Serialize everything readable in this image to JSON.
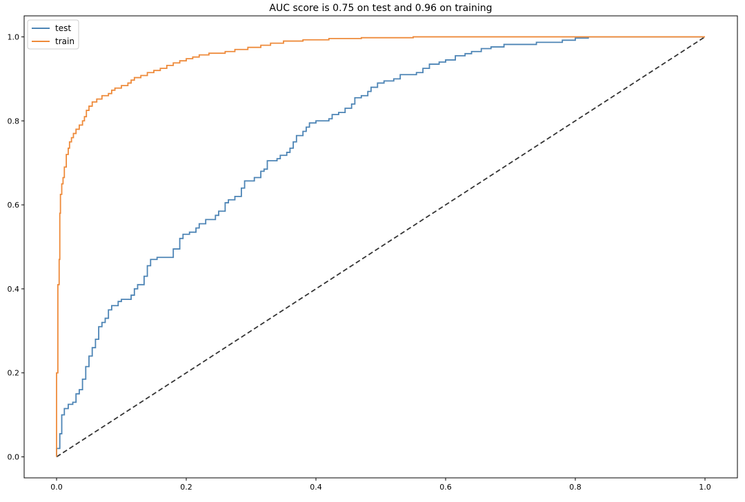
{
  "chart_data": {
    "type": "line",
    "title": "AUC score is 0.75 on test and 0.96 on training",
    "xlabel": "",
    "ylabel": "",
    "xlim": [
      -0.05,
      1.05
    ],
    "ylim": [
      -0.05,
      1.05
    ],
    "x_ticks": [
      0.0,
      0.2,
      0.4,
      0.6,
      0.8,
      1.0
    ],
    "x_tick_labels": [
      "0.0",
      "0.2",
      "0.4",
      "0.6",
      "0.8",
      "1.0"
    ],
    "y_ticks": [
      0.0,
      0.2,
      0.4,
      0.6,
      0.8,
      1.0
    ],
    "y_tick_labels": [
      "0.0",
      "0.2",
      "0.4",
      "0.6",
      "0.8",
      "1.0"
    ],
    "grid": false,
    "legend_position": "top-left",
    "series": [
      {
        "name": "test",
        "color": "#4c84b5",
        "style": "step",
        "points": [
          [
            0.0,
            0.0
          ],
          [
            0.0,
            0.02
          ],
          [
            0.005,
            0.02
          ],
          [
            0.005,
            0.055
          ],
          [
            0.008,
            0.055
          ],
          [
            0.008,
            0.1
          ],
          [
            0.012,
            0.1
          ],
          [
            0.012,
            0.115
          ],
          [
            0.018,
            0.115
          ],
          [
            0.018,
            0.125
          ],
          [
            0.025,
            0.125
          ],
          [
            0.025,
            0.13
          ],
          [
            0.03,
            0.13
          ],
          [
            0.03,
            0.15
          ],
          [
            0.035,
            0.15
          ],
          [
            0.035,
            0.16
          ],
          [
            0.04,
            0.16
          ],
          [
            0.04,
            0.185
          ],
          [
            0.045,
            0.185
          ],
          [
            0.045,
            0.215
          ],
          [
            0.05,
            0.215
          ],
          [
            0.05,
            0.24
          ],
          [
            0.055,
            0.24
          ],
          [
            0.055,
            0.26
          ],
          [
            0.06,
            0.26
          ],
          [
            0.06,
            0.28
          ],
          [
            0.065,
            0.28
          ],
          [
            0.065,
            0.31
          ],
          [
            0.07,
            0.31
          ],
          [
            0.07,
            0.32
          ],
          [
            0.075,
            0.32
          ],
          [
            0.075,
            0.33
          ],
          [
            0.08,
            0.33
          ],
          [
            0.08,
            0.35
          ],
          [
            0.085,
            0.35
          ],
          [
            0.085,
            0.36
          ],
          [
            0.095,
            0.36
          ],
          [
            0.095,
            0.37
          ],
          [
            0.1,
            0.37
          ],
          [
            0.1,
            0.375
          ],
          [
            0.115,
            0.375
          ],
          [
            0.115,
            0.385
          ],
          [
            0.12,
            0.385
          ],
          [
            0.12,
            0.4
          ],
          [
            0.125,
            0.4
          ],
          [
            0.125,
            0.41
          ],
          [
            0.135,
            0.41
          ],
          [
            0.135,
            0.43
          ],
          [
            0.14,
            0.43
          ],
          [
            0.14,
            0.455
          ],
          [
            0.145,
            0.455
          ],
          [
            0.145,
            0.47
          ],
          [
            0.155,
            0.47
          ],
          [
            0.155,
            0.475
          ],
          [
            0.18,
            0.475
          ],
          [
            0.18,
            0.495
          ],
          [
            0.19,
            0.495
          ],
          [
            0.19,
            0.52
          ],
          [
            0.195,
            0.52
          ],
          [
            0.195,
            0.53
          ],
          [
            0.205,
            0.53
          ],
          [
            0.205,
            0.535
          ],
          [
            0.215,
            0.535
          ],
          [
            0.215,
            0.545
          ],
          [
            0.22,
            0.545
          ],
          [
            0.22,
            0.555
          ],
          [
            0.23,
            0.555
          ],
          [
            0.23,
            0.565
          ],
          [
            0.245,
            0.565
          ],
          [
            0.245,
            0.575
          ],
          [
            0.25,
            0.575
          ],
          [
            0.25,
            0.585
          ],
          [
            0.26,
            0.585
          ],
          [
            0.26,
            0.605
          ],
          [
            0.265,
            0.605
          ],
          [
            0.265,
            0.612
          ],
          [
            0.275,
            0.612
          ],
          [
            0.275,
            0.62
          ],
          [
            0.285,
            0.62
          ],
          [
            0.285,
            0.64
          ],
          [
            0.29,
            0.64
          ],
          [
            0.29,
            0.657
          ],
          [
            0.305,
            0.657
          ],
          [
            0.305,
            0.665
          ],
          [
            0.315,
            0.665
          ],
          [
            0.315,
            0.68
          ],
          [
            0.32,
            0.68
          ],
          [
            0.32,
            0.685
          ],
          [
            0.325,
            0.685
          ],
          [
            0.325,
            0.705
          ],
          [
            0.34,
            0.705
          ],
          [
            0.34,
            0.71
          ],
          [
            0.345,
            0.71
          ],
          [
            0.345,
            0.718
          ],
          [
            0.355,
            0.718
          ],
          [
            0.355,
            0.725
          ],
          [
            0.36,
            0.725
          ],
          [
            0.36,
            0.735
          ],
          [
            0.365,
            0.735
          ],
          [
            0.365,
            0.75
          ],
          [
            0.37,
            0.75
          ],
          [
            0.37,
            0.765
          ],
          [
            0.38,
            0.765
          ],
          [
            0.38,
            0.775
          ],
          [
            0.385,
            0.775
          ],
          [
            0.385,
            0.785
          ],
          [
            0.39,
            0.785
          ],
          [
            0.39,
            0.795
          ],
          [
            0.4,
            0.795
          ],
          [
            0.4,
            0.8
          ],
          [
            0.42,
            0.8
          ],
          [
            0.42,
            0.805
          ],
          [
            0.425,
            0.805
          ],
          [
            0.425,
            0.815
          ],
          [
            0.435,
            0.815
          ],
          [
            0.435,
            0.82
          ],
          [
            0.445,
            0.82
          ],
          [
            0.445,
            0.83
          ],
          [
            0.455,
            0.83
          ],
          [
            0.455,
            0.84
          ],
          [
            0.46,
            0.84
          ],
          [
            0.46,
            0.855
          ],
          [
            0.47,
            0.855
          ],
          [
            0.47,
            0.86
          ],
          [
            0.48,
            0.86
          ],
          [
            0.48,
            0.87
          ],
          [
            0.485,
            0.87
          ],
          [
            0.485,
            0.88
          ],
          [
            0.495,
            0.88
          ],
          [
            0.495,
            0.89
          ],
          [
            0.505,
            0.89
          ],
          [
            0.505,
            0.895
          ],
          [
            0.52,
            0.895
          ],
          [
            0.52,
            0.9
          ],
          [
            0.53,
            0.9
          ],
          [
            0.53,
            0.91
          ],
          [
            0.555,
            0.91
          ],
          [
            0.555,
            0.915
          ],
          [
            0.565,
            0.915
          ],
          [
            0.565,
            0.925
          ],
          [
            0.575,
            0.925
          ],
          [
            0.575,
            0.935
          ],
          [
            0.59,
            0.935
          ],
          [
            0.59,
            0.94
          ],
          [
            0.6,
            0.94
          ],
          [
            0.6,
            0.945
          ],
          [
            0.615,
            0.945
          ],
          [
            0.615,
            0.955
          ],
          [
            0.63,
            0.955
          ],
          [
            0.63,
            0.96
          ],
          [
            0.64,
            0.96
          ],
          [
            0.64,
            0.965
          ],
          [
            0.655,
            0.965
          ],
          [
            0.655,
            0.972
          ],
          [
            0.67,
            0.972
          ],
          [
            0.67,
            0.976
          ],
          [
            0.69,
            0.976
          ],
          [
            0.69,
            0.982
          ],
          [
            0.74,
            0.982
          ],
          [
            0.74,
            0.987
          ],
          [
            0.78,
            0.987
          ],
          [
            0.78,
            0.992
          ],
          [
            0.8,
            0.992
          ],
          [
            0.8,
            0.997
          ],
          [
            0.82,
            0.997
          ],
          [
            0.82,
            1.0
          ],
          [
            1.0,
            1.0
          ]
        ]
      },
      {
        "name": "train",
        "color": "#ee8a3a",
        "style": "step",
        "points": [
          [
            0.0,
            0.0
          ],
          [
            0.0,
            0.2
          ],
          [
            0.002,
            0.2
          ],
          [
            0.002,
            0.41
          ],
          [
            0.004,
            0.41
          ],
          [
            0.004,
            0.47
          ],
          [
            0.005,
            0.47
          ],
          [
            0.005,
            0.58
          ],
          [
            0.006,
            0.58
          ],
          [
            0.006,
            0.625
          ],
          [
            0.008,
            0.625
          ],
          [
            0.008,
            0.65
          ],
          [
            0.01,
            0.65
          ],
          [
            0.01,
            0.665
          ],
          [
            0.012,
            0.665
          ],
          [
            0.012,
            0.69
          ],
          [
            0.015,
            0.69
          ],
          [
            0.015,
            0.72
          ],
          [
            0.018,
            0.72
          ],
          [
            0.018,
            0.735
          ],
          [
            0.02,
            0.735
          ],
          [
            0.02,
            0.75
          ],
          [
            0.023,
            0.75
          ],
          [
            0.023,
            0.76
          ],
          [
            0.026,
            0.76
          ],
          [
            0.026,
            0.77
          ],
          [
            0.03,
            0.77
          ],
          [
            0.03,
            0.78
          ],
          [
            0.035,
            0.78
          ],
          [
            0.035,
            0.79
          ],
          [
            0.04,
            0.79
          ],
          [
            0.04,
            0.8
          ],
          [
            0.043,
            0.8
          ],
          [
            0.043,
            0.81
          ],
          [
            0.046,
            0.81
          ],
          [
            0.046,
            0.825
          ],
          [
            0.05,
            0.825
          ],
          [
            0.05,
            0.835
          ],
          [
            0.055,
            0.835
          ],
          [
            0.055,
            0.845
          ],
          [
            0.062,
            0.845
          ],
          [
            0.062,
            0.852
          ],
          [
            0.07,
            0.852
          ],
          [
            0.07,
            0.86
          ],
          [
            0.08,
            0.86
          ],
          [
            0.08,
            0.865
          ],
          [
            0.085,
            0.865
          ],
          [
            0.085,
            0.873
          ],
          [
            0.09,
            0.873
          ],
          [
            0.09,
            0.878
          ],
          [
            0.1,
            0.878
          ],
          [
            0.1,
            0.884
          ],
          [
            0.11,
            0.884
          ],
          [
            0.11,
            0.89
          ],
          [
            0.115,
            0.89
          ],
          [
            0.115,
            0.897
          ],
          [
            0.12,
            0.897
          ],
          [
            0.12,
            0.903
          ],
          [
            0.13,
            0.903
          ],
          [
            0.13,
            0.908
          ],
          [
            0.14,
            0.908
          ],
          [
            0.14,
            0.915
          ],
          [
            0.15,
            0.915
          ],
          [
            0.15,
            0.92
          ],
          [
            0.16,
            0.92
          ],
          [
            0.16,
            0.925
          ],
          [
            0.17,
            0.925
          ],
          [
            0.17,
            0.932
          ],
          [
            0.18,
            0.932
          ],
          [
            0.18,
            0.938
          ],
          [
            0.19,
            0.938
          ],
          [
            0.19,
            0.943
          ],
          [
            0.2,
            0.943
          ],
          [
            0.2,
            0.948
          ],
          [
            0.21,
            0.948
          ],
          [
            0.21,
            0.952
          ],
          [
            0.22,
            0.952
          ],
          [
            0.22,
            0.957
          ],
          [
            0.235,
            0.957
          ],
          [
            0.235,
            0.961
          ],
          [
            0.26,
            0.961
          ],
          [
            0.26,
            0.965
          ],
          [
            0.275,
            0.965
          ],
          [
            0.275,
            0.97
          ],
          [
            0.295,
            0.97
          ],
          [
            0.295,
            0.975
          ],
          [
            0.315,
            0.975
          ],
          [
            0.315,
            0.98
          ],
          [
            0.33,
            0.98
          ],
          [
            0.33,
            0.985
          ],
          [
            0.35,
            0.985
          ],
          [
            0.35,
            0.99
          ],
          [
            0.38,
            0.99
          ],
          [
            0.38,
            0.993
          ],
          [
            0.42,
            0.993
          ],
          [
            0.42,
            0.996
          ],
          [
            0.47,
            0.996
          ],
          [
            0.47,
            0.998
          ],
          [
            0.55,
            0.998
          ],
          [
            0.55,
            1.0
          ],
          [
            1.0,
            1.0
          ]
        ]
      }
    ],
    "reference_line": {
      "color": "#333333",
      "dash": "dashed",
      "from": [
        0.0,
        0.0
      ],
      "to": [
        1.0,
        1.0
      ]
    }
  }
}
